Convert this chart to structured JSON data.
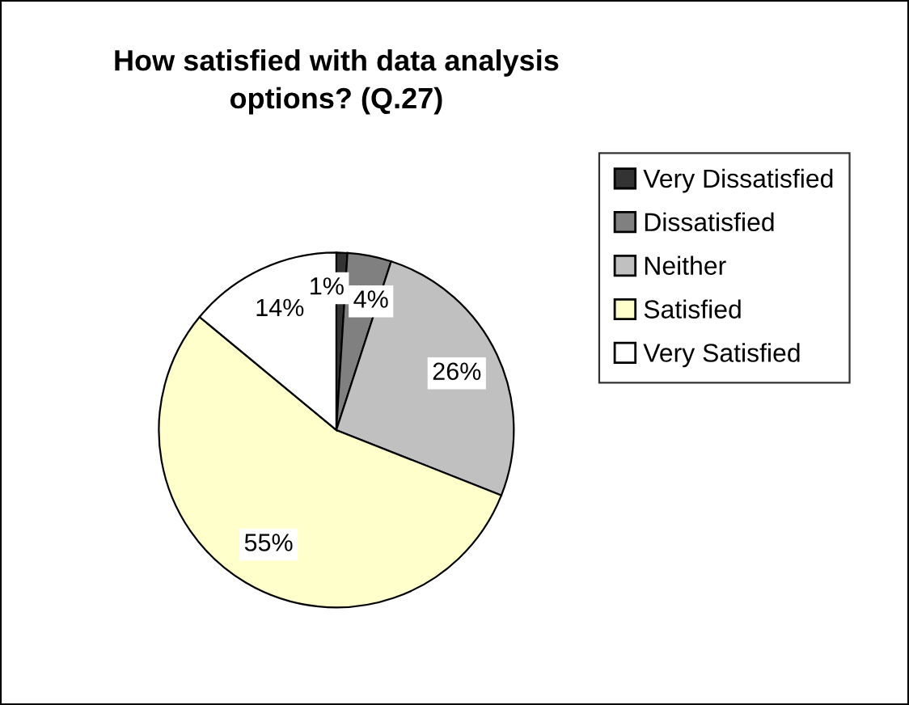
{
  "chart_data": {
    "type": "pie",
    "title": "How satisfied with data analysis\noptions? (Q.27)",
    "categories": [
      "Very Dissatisfied",
      "Dissatisfied",
      "Neither",
      "Satisfied",
      "Very Satisfied"
    ],
    "values": [
      1,
      4,
      26,
      55,
      14
    ],
    "value_labels": [
      "1%",
      "4%",
      "26%",
      "55%",
      "14%"
    ],
    "colors": [
      "#333333",
      "#808080",
      "#c0c0c0",
      "#ffffcc",
      "#ffffff"
    ],
    "legend": "right"
  }
}
